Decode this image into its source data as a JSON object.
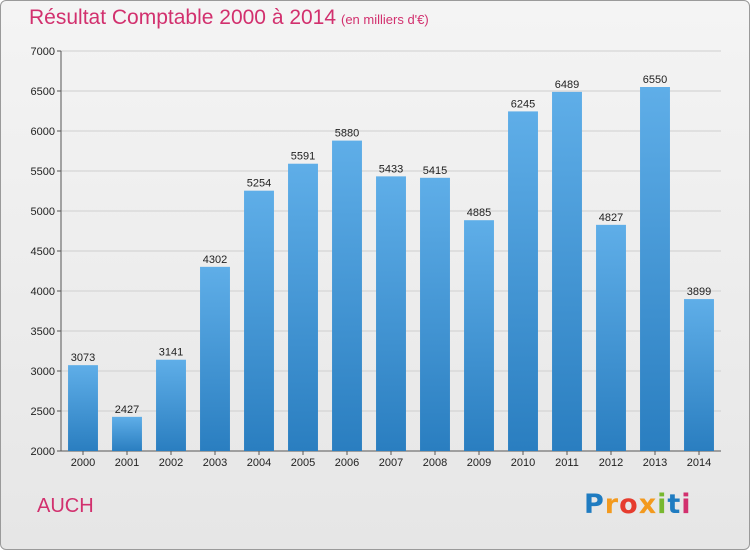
{
  "header": {
    "title": "Résultat Comptable 2000 à 2014",
    "subtitle": "(en milliers d'€)"
  },
  "footer": {
    "commune": "AUCH",
    "logo_letters": [
      "P",
      "r",
      "o",
      "x",
      "i",
      "t",
      "i"
    ],
    "logo_colors": [
      "#1f7cc1",
      "#f39a1e",
      "#e63c2e",
      "#f39a1e",
      "#78b830",
      "#1f7cc1",
      "#d2306e"
    ]
  },
  "colors": {
    "accent": "#d2306e",
    "bar_top": "#5faee8",
    "bar_bottom": "#2a7ec0"
  },
  "chart_data": {
    "type": "bar",
    "title": "Résultat Comptable 2000 à 2014",
    "subtitle": "(en milliers d'€)",
    "categories": [
      "2000",
      "2001",
      "2002",
      "2003",
      "2004",
      "2005",
      "2006",
      "2007",
      "2008",
      "2009",
      "2010",
      "2011",
      "2012",
      "2013",
      "2014"
    ],
    "values": [
      3073,
      2427,
      3141,
      4302,
      5254,
      5591,
      5880,
      5433,
      5415,
      4885,
      6245,
      6489,
      4827,
      6550,
      3899
    ],
    "ylim": [
      2000,
      7000
    ],
    "yticks": [
      2000,
      2500,
      3000,
      3500,
      4000,
      4500,
      5000,
      5500,
      6000,
      6500,
      7000
    ],
    "grid": true,
    "legend": "none"
  }
}
